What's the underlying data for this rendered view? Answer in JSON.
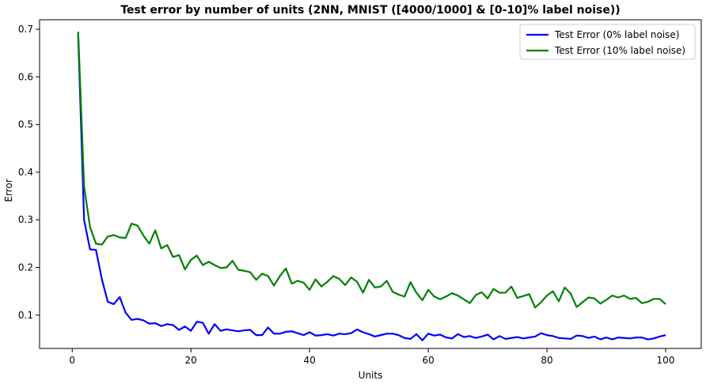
{
  "chart_data": {
    "type": "line",
    "title": "Test error by number of units (2NN, MNIST ([4000/1000] & [0-10]% label noise))",
    "xlabel": "Units",
    "ylabel": "Error",
    "xlim": [
      -5.5,
      106
    ],
    "ylim": [
      0.03,
      0.72
    ],
    "xticks": [
      0,
      20,
      40,
      60,
      80,
      100
    ],
    "yticks": [
      0.1,
      0.2,
      0.3,
      0.4,
      0.5,
      0.6,
      0.7
    ],
    "grid": false,
    "legend_position": "top-right",
    "x": [
      1,
      2,
      3,
      4,
      5,
      6,
      7,
      8,
      9,
      10,
      11,
      12,
      13,
      14,
      15,
      16,
      17,
      18,
      19,
      20,
      21,
      22,
      23,
      24,
      25,
      26,
      27,
      28,
      29,
      30,
      31,
      32,
      33,
      34,
      35,
      36,
      37,
      38,
      39,
      40,
      41,
      42,
      43,
      44,
      45,
      46,
      47,
      48,
      49,
      50,
      51,
      52,
      53,
      54,
      55,
      56,
      57,
      58,
      59,
      60,
      61,
      62,
      63,
      64,
      65,
      66,
      67,
      68,
      69,
      70,
      71,
      72,
      73,
      74,
      75,
      76,
      77,
      78,
      79,
      80,
      81,
      82,
      83,
      84,
      85,
      86,
      87,
      88,
      89,
      90,
      91,
      92,
      93,
      94,
      95,
      96,
      97,
      98,
      99,
      100
    ],
    "series": [
      {
        "name": "Test Error (0% label noise)",
        "color": "#0000ff",
        "values": [
          0.69,
          0.3,
          0.238,
          0.237,
          0.175,
          0.128,
          0.123,
          0.138,
          0.105,
          0.09,
          0.092,
          0.089,
          0.082,
          0.083,
          0.077,
          0.081,
          0.079,
          0.069,
          0.076,
          0.067,
          0.086,
          0.084,
          0.061,
          0.081,
          0.067,
          0.07,
          0.068,
          0.066,
          0.068,
          0.069,
          0.058,
          0.058,
          0.074,
          0.061,
          0.061,
          0.065,
          0.066,
          0.062,
          0.058,
          0.064,
          0.057,
          0.058,
          0.06,
          0.057,
          0.061,
          0.06,
          0.062,
          0.07,
          0.064,
          0.06,
          0.055,
          0.058,
          0.061,
          0.061,
          0.058,
          0.052,
          0.05,
          0.06,
          0.047,
          0.061,
          0.057,
          0.059,
          0.053,
          0.051,
          0.06,
          0.054,
          0.056,
          0.052,
          0.055,
          0.059,
          0.049,
          0.056,
          0.05,
          0.052,
          0.054,
          0.051,
          0.053,
          0.055,
          0.062,
          0.058,
          0.056,
          0.052,
          0.051,
          0.05,
          0.057,
          0.056,
          0.052,
          0.055,
          0.049,
          0.053,
          0.049,
          0.053,
          0.052,
          0.051,
          0.053,
          0.053,
          0.049,
          0.051,
          0.055,
          0.058
        ]
      },
      {
        "name": "Test Error (10% label noise)",
        "color": "#008000",
        "values": [
          0.695,
          0.37,
          0.285,
          0.25,
          0.248,
          0.265,
          0.268,
          0.263,
          0.262,
          0.292,
          0.288,
          0.267,
          0.25,
          0.278,
          0.24,
          0.247,
          0.222,
          0.226,
          0.196,
          0.216,
          0.225,
          0.205,
          0.212,
          0.205,
          0.199,
          0.2,
          0.214,
          0.195,
          0.193,
          0.19,
          0.174,
          0.187,
          0.182,
          0.162,
          0.182,
          0.198,
          0.166,
          0.172,
          0.168,
          0.153,
          0.175,
          0.16,
          0.17,
          0.182,
          0.176,
          0.163,
          0.179,
          0.17,
          0.147,
          0.174,
          0.158,
          0.16,
          0.172,
          0.149,
          0.143,
          0.139,
          0.169,
          0.147,
          0.131,
          0.153,
          0.139,
          0.133,
          0.139,
          0.146,
          0.141,
          0.133,
          0.125,
          0.142,
          0.148,
          0.135,
          0.155,
          0.147,
          0.147,
          0.16,
          0.136,
          0.14,
          0.144,
          0.116,
          0.127,
          0.141,
          0.15,
          0.129,
          0.158,
          0.145,
          0.117,
          0.127,
          0.137,
          0.135,
          0.124,
          0.132,
          0.141,
          0.137,
          0.141,
          0.134,
          0.136,
          0.125,
          0.128,
          0.134,
          0.134,
          0.123
        ]
      }
    ]
  }
}
